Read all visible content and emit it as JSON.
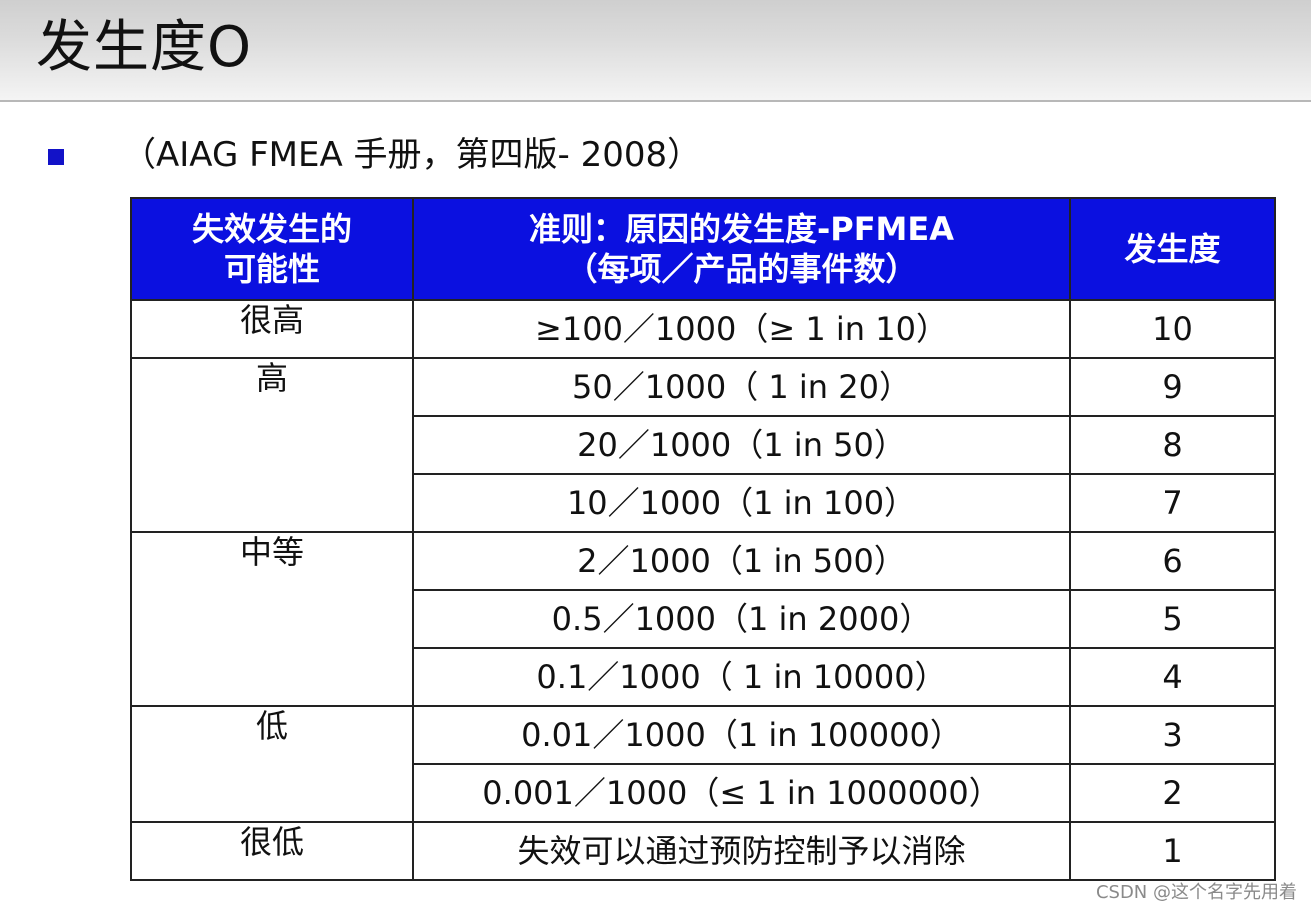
{
  "slide": {
    "title": "发生度O",
    "subtitle": "（AIAG FMEA 手册，第四版- 2008）",
    "watermark": "CSDN @这个名字先用着"
  },
  "table": {
    "headers": [
      "失效发生的\n可能性",
      "准则：原因的发生度-PFMEA\n（每项／产品的事件数）",
      "发生度"
    ],
    "categories": [
      {
        "label": "很高",
        "rows": [
          {
            "criteria": "≥100／1000（≥  1 in 10）",
            "rank": "10"
          }
        ]
      },
      {
        "label": "高",
        "rows": [
          {
            "criteria": "50／1000（  1 in 20）",
            "rank": "9"
          },
          {
            "criteria": "20／1000（1 in 50）",
            "rank": "8"
          },
          {
            "criteria": "10／1000（1 in 100）",
            "rank": "7"
          }
        ]
      },
      {
        "label": "中等",
        "rows": [
          {
            "criteria": "2／1000（1 in 500）",
            "rank": "6"
          },
          {
            "criteria": "0.5／1000（1 in 2000）",
            "rank": "5"
          },
          {
            "criteria": "0.1／1000（  1 in 10000）",
            "rank": "4"
          }
        ]
      },
      {
        "label": "低",
        "rows": [
          {
            "criteria": "0.01／1000（1 in 100000）",
            "rank": "3"
          },
          {
            "criteria": "0.001／1000（≤  1 in 1000000）",
            "rank": "2"
          }
        ]
      },
      {
        "label": "很低",
        "rows": [
          {
            "criteria": "失效可以通过预防控制予以消除",
            "rank": "1"
          }
        ]
      }
    ]
  },
  "colors": {
    "header_bg": "#0b10e0",
    "header_text": "#ffffff",
    "bullet": "#1212c8"
  }
}
